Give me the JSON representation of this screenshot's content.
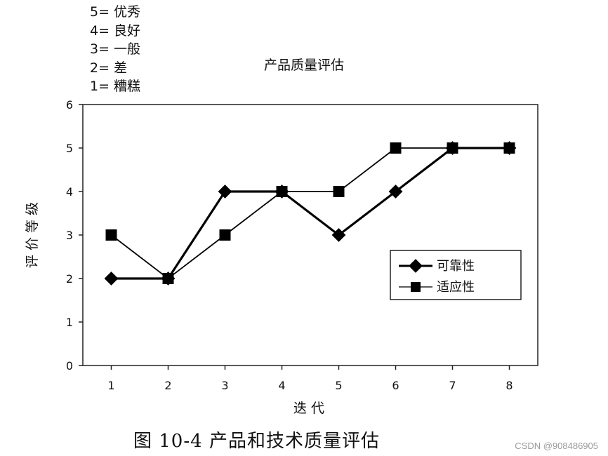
{
  "scale_key": [
    "5= 优秀",
    "4= 良好",
    "3= 一般",
    "2= 差",
    "1= 糟糕"
  ],
  "caption": "图 10-4   产品和技术质量评估",
  "watermark": "CSDN @908486905",
  "chart_data": {
    "type": "line",
    "title": "产品质量评估",
    "xlabel": "迭 代",
    "ylabel": "评 价 等 级",
    "x": [
      1,
      2,
      3,
      4,
      5,
      6,
      7,
      8
    ],
    "ylim": [
      0,
      6
    ],
    "yticks": [
      0,
      1,
      2,
      3,
      4,
      5,
      6
    ],
    "grid": false,
    "legend_position": "right",
    "series": [
      {
        "name": "可靠性",
        "marker": "diamond",
        "color": "#000000",
        "values": [
          2,
          2,
          4,
          4,
          3,
          4,
          5,
          5
        ]
      },
      {
        "name": "适应性",
        "marker": "square",
        "color": "#000000",
        "values": [
          3,
          2,
          3,
          4,
          4,
          5,
          5,
          5
        ]
      }
    ]
  }
}
